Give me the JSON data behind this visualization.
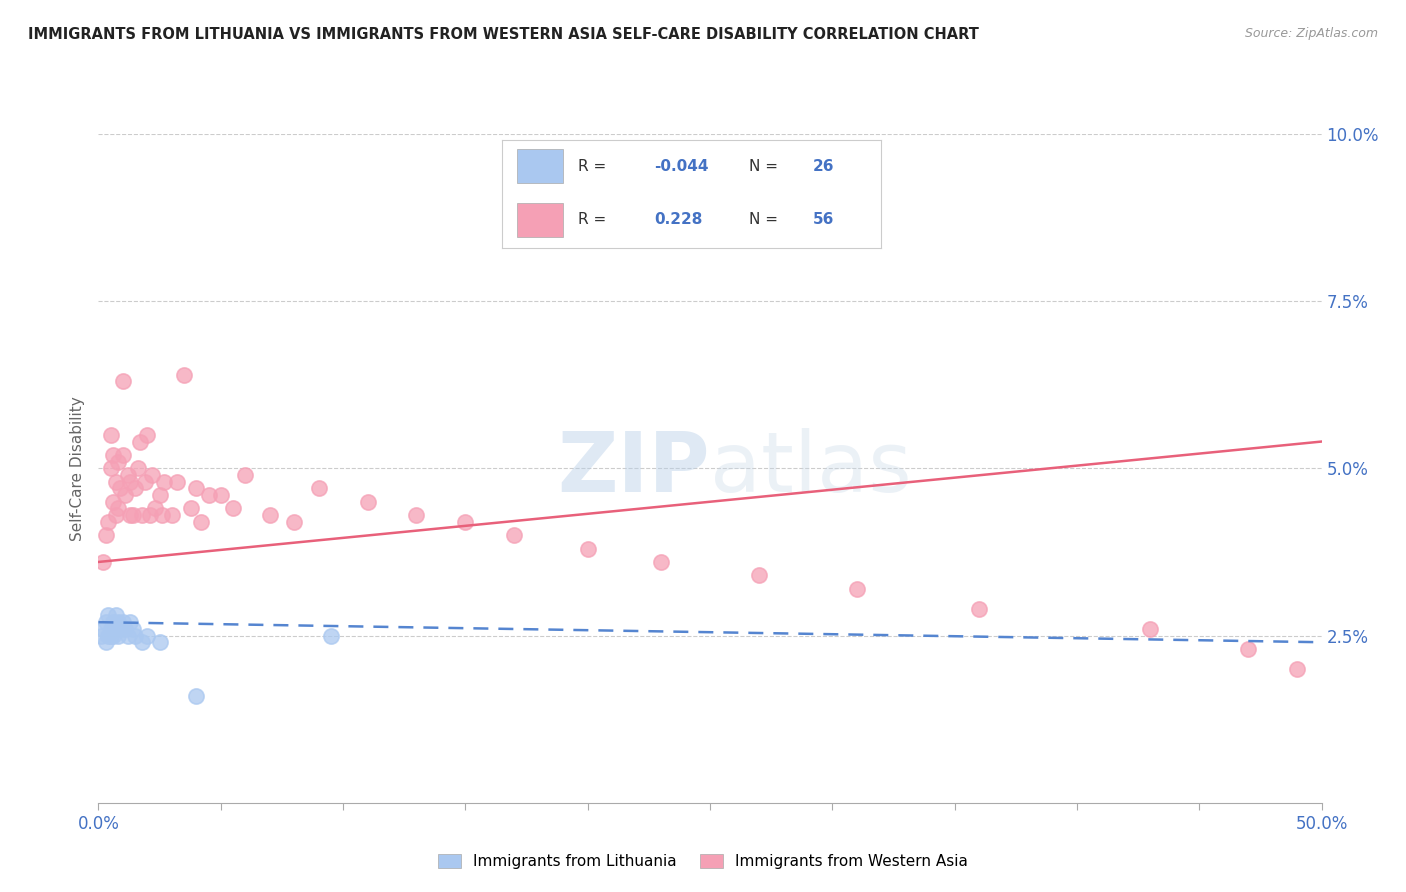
{
  "title": "IMMIGRANTS FROM LITHUANIA VS IMMIGRANTS FROM WESTERN ASIA SELF-CARE DISABILITY CORRELATION CHART",
  "source": "Source: ZipAtlas.com",
  "ylabel_label": "Self-Care Disability",
  "xlim": [
    0.0,
    0.5
  ],
  "ylim": [
    0.0,
    0.1
  ],
  "lithuania_color": "#aac8f0",
  "western_asia_color": "#f5a0b5",
  "lithuania_line_color": "#5585d0",
  "western_asia_line_color": "#e8607a",
  "legend_R_lithuania": "-0.044",
  "legend_N_lithuania": "26",
  "legend_R_western_asia": "0.228",
  "legend_N_western_asia": "56",
  "watermark": "ZIPatlas",
  "lit_x": [
    0.001,
    0.002,
    0.003,
    0.003,
    0.004,
    0.004,
    0.005,
    0.005,
    0.006,
    0.006,
    0.007,
    0.007,
    0.008,
    0.008,
    0.009,
    0.01,
    0.011,
    0.012,
    0.013,
    0.014,
    0.015,
    0.018,
    0.02,
    0.025,
    0.04,
    0.095
  ],
  "lit_y": [
    0.025,
    0.026,
    0.024,
    0.027,
    0.025,
    0.028,
    0.025,
    0.026,
    0.027,
    0.025,
    0.026,
    0.028,
    0.025,
    0.027,
    0.026,
    0.027,
    0.026,
    0.025,
    0.027,
    0.026,
    0.025,
    0.024,
    0.025,
    0.024,
    0.016,
    0.025
  ],
  "wa_x": [
    0.002,
    0.003,
    0.004,
    0.005,
    0.005,
    0.006,
    0.006,
    0.007,
    0.007,
    0.008,
    0.008,
    0.009,
    0.01,
    0.01,
    0.011,
    0.012,
    0.013,
    0.013,
    0.014,
    0.015,
    0.016,
    0.017,
    0.018,
    0.019,
    0.02,
    0.021,
    0.022,
    0.023,
    0.025,
    0.026,
    0.027,
    0.03,
    0.032,
    0.035,
    0.038,
    0.04,
    0.042,
    0.045,
    0.05,
    0.055,
    0.06,
    0.07,
    0.08,
    0.09,
    0.11,
    0.13,
    0.15,
    0.17,
    0.2,
    0.23,
    0.27,
    0.31,
    0.36,
    0.43,
    0.47,
    0.49
  ],
  "wa_y": [
    0.036,
    0.04,
    0.042,
    0.05,
    0.055,
    0.045,
    0.052,
    0.048,
    0.043,
    0.051,
    0.044,
    0.047,
    0.052,
    0.063,
    0.046,
    0.049,
    0.043,
    0.048,
    0.043,
    0.047,
    0.05,
    0.054,
    0.043,
    0.048,
    0.055,
    0.043,
    0.049,
    0.044,
    0.046,
    0.043,
    0.048,
    0.043,
    0.048,
    0.064,
    0.044,
    0.047,
    0.042,
    0.046,
    0.046,
    0.044,
    0.049,
    0.043,
    0.042,
    0.047,
    0.045,
    0.043,
    0.042,
    0.04,
    0.038,
    0.036,
    0.034,
    0.032,
    0.029,
    0.026,
    0.023,
    0.02
  ],
  "lit_line_x": [
    0.0,
    0.5
  ],
  "lit_line_y": [
    0.027,
    0.024
  ],
  "wa_line_x": [
    0.0,
    0.5
  ],
  "wa_line_y": [
    0.036,
    0.054
  ],
  "background_color": "#ffffff"
}
